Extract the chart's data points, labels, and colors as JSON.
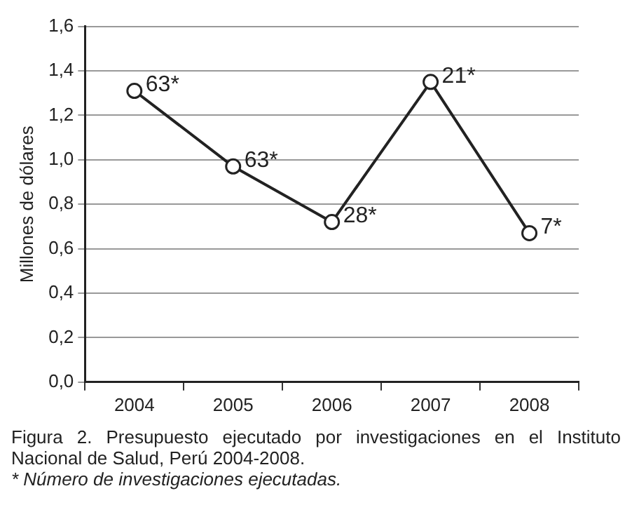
{
  "chart_data": {
    "type": "line",
    "title": "Figura 2. Presupuesto ejecutado por investigaciones en el Instituto Nacional de Salud, Perú 2004-2008.",
    "ylabel": "Millones de dólares",
    "annotations": [
      {
        "text": "63*",
        "x": "2004",
        "y": 1.31
      },
      {
        "text": "63*",
        "x": "2005",
        "y": 0.97
      },
      {
        "text": "28*",
        "x": "2006",
        "y": 0.72
      },
      {
        "text": "21*",
        "x": "2007",
        "y": 1.35
      },
      {
        "text": "7*",
        "x": "2008",
        "y": 0.67
      },
      "* Número de investigaciones ejecutadas."
    ],
    "categories": [
      "2004",
      "2005",
      "2006",
      "2007",
      "2008"
    ],
    "series": [
      {
        "color": "#222222",
        "values": [
          1.31,
          0.97,
          0.72,
          1.35,
          0.67
        ]
      }
    ],
    "ylim": [
      0,
      1.6
    ],
    "yticks": [
      {
        "value": 0,
        "label": "0,0"
      },
      {
        "value": 0.2,
        "label": "0,2"
      },
      {
        "value": 0.4,
        "label": "0,4"
      },
      {
        "value": 0.6,
        "label": "0,6"
      },
      {
        "value": 0.8,
        "label": "0,8"
      },
      {
        "value": 1,
        "label": "1,0"
      },
      {
        "value": 1.2,
        "label": "1,2"
      },
      {
        "value": 1.4,
        "label": "1,4"
      },
      {
        "value": 1.6,
        "label": "1,6"
      }
    ],
    "grid": "y",
    "marker": "circle",
    "line_style": "solid",
    "legend": false
  }
}
